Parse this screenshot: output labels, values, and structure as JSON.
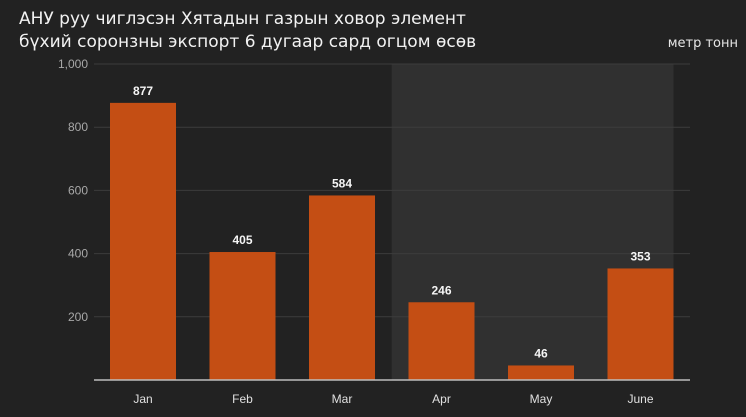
{
  "chart_data": {
    "type": "bar",
    "title_lines": [
      "АНУ руу чиглэсэн Хятадын газрын ховор элемент",
      "бүхий соронзны экспорт 6 дугаар сард огцом өсөв"
    ],
    "unit": "метр тонн",
    "categories": [
      "Jan",
      "Feb",
      "Mar",
      "Apr",
      "May",
      "June"
    ],
    "values": [
      877,
      405,
      584,
      246,
      46,
      353
    ],
    "ylim": [
      0,
      1000
    ],
    "yticks": [
      200,
      400,
      600,
      800,
      1000
    ],
    "ytick_labels": [
      "200",
      "400",
      "600",
      "800",
      "1,000"
    ],
    "highlight_from_category": "Apr",
    "bar_color": "#c44e14",
    "highlight_color": "#303030",
    "grid": true
  }
}
